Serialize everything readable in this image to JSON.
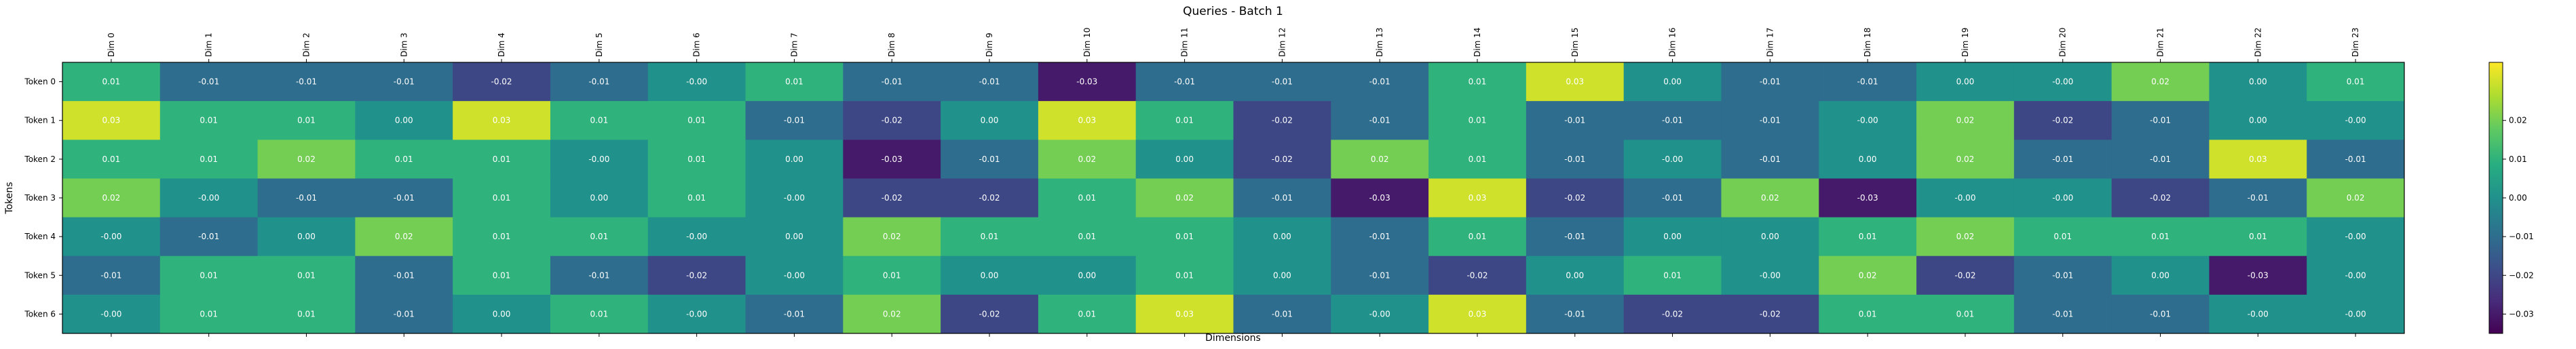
{
  "chart_data": {
    "type": "heatmap",
    "title": "Queries - Batch 1",
    "xlabel": "Dimensions",
    "ylabel": "Tokens",
    "x_labels": [
      "Dim 0",
      "Dim 1",
      "Dim 2",
      "Dim 3",
      "Dim 4",
      "Dim 5",
      "Dim 6",
      "Dim 7",
      "Dim 8",
      "Dim 9",
      "Dim 10",
      "Dim 11",
      "Dim 12",
      "Dim 13",
      "Dim 14",
      "Dim 15",
      "Dim 16",
      "Dim 17",
      "Dim 18",
      "Dim 19",
      "Dim 20",
      "Dim 21",
      "Dim 22",
      "Dim 23"
    ],
    "y_labels": [
      "Token 0",
      "Token 1",
      "Token 2",
      "Token 3",
      "Token 4",
      "Token 5",
      "Token 6"
    ],
    "values": [
      [
        0.01,
        -0.01,
        -0.01,
        -0.01,
        -0.02,
        -0.01,
        -0.0,
        0.01,
        -0.01,
        -0.01,
        -0.03,
        -0.01,
        -0.01,
        -0.01,
        0.01,
        0.03,
        0.0,
        -0.01,
        -0.01,
        0.0,
        -0.0,
        0.02,
        0.0,
        0.01
      ],
      [
        0.03,
        0.01,
        0.01,
        0.0,
        0.03,
        0.01,
        0.01,
        -0.01,
        -0.02,
        0.0,
        0.03,
        0.01,
        -0.02,
        -0.01,
        0.01,
        -0.01,
        -0.01,
        -0.01,
        -0.0,
        0.02,
        -0.02,
        -0.01,
        0.0,
        -0.0
      ],
      [
        0.01,
        0.01,
        0.02,
        0.01,
        0.01,
        -0.0,
        0.01,
        0.0,
        -0.03,
        -0.01,
        0.02,
        0.0,
        -0.02,
        0.02,
        0.01,
        -0.01,
        -0.0,
        -0.01,
        0.0,
        0.02,
        -0.01,
        -0.01,
        0.03,
        -0.01
      ],
      [
        0.02,
        -0.0,
        -0.01,
        -0.01,
        0.01,
        0.0,
        0.01,
        -0.0,
        -0.02,
        -0.02,
        0.01,
        0.02,
        -0.01,
        -0.03,
        0.03,
        -0.02,
        -0.01,
        0.02,
        -0.03,
        -0.0,
        -0.0,
        -0.02,
        -0.01,
        0.02
      ],
      [
        -0.0,
        -0.01,
        0.0,
        0.02,
        0.01,
        0.01,
        -0.0,
        0.0,
        0.02,
        0.01,
        0.01,
        0.01,
        0.0,
        -0.01,
        0.01,
        -0.01,
        0.0,
        0.0,
        0.01,
        0.02,
        0.01,
        0.01,
        0.01,
        -0.0
      ],
      [
        -0.01,
        0.01,
        0.01,
        -0.01,
        0.01,
        -0.01,
        -0.02,
        -0.0,
        0.01,
        0.0,
        0.0,
        0.01,
        0.0,
        -0.01,
        -0.02,
        0.0,
        0.01,
        -0.0,
        0.02,
        -0.02,
        -0.01,
        0.0,
        -0.03,
        -0.0
      ],
      [
        -0.0,
        0.01,
        0.01,
        -0.01,
        0.0,
        0.01,
        -0.0,
        -0.01,
        0.02,
        -0.02,
        0.01,
        0.03,
        -0.01,
        -0.0,
        0.03,
        -0.01,
        -0.02,
        -0.02,
        0.01,
        0.01,
        -0.01,
        -0.01,
        -0.0,
        -0.0
      ]
    ],
    "vmin": -0.035,
    "vmax": 0.035,
    "colormap": "viridis",
    "colorbar_ticks": [
      0.02,
      0.01,
      0.0,
      -0.01,
      -0.02,
      -0.03
    ],
    "colorbar_tick_labels": [
      "0.02",
      "0.01",
      "0.00",
      "−0.01",
      "−0.02",
      "−0.03"
    ]
  }
}
